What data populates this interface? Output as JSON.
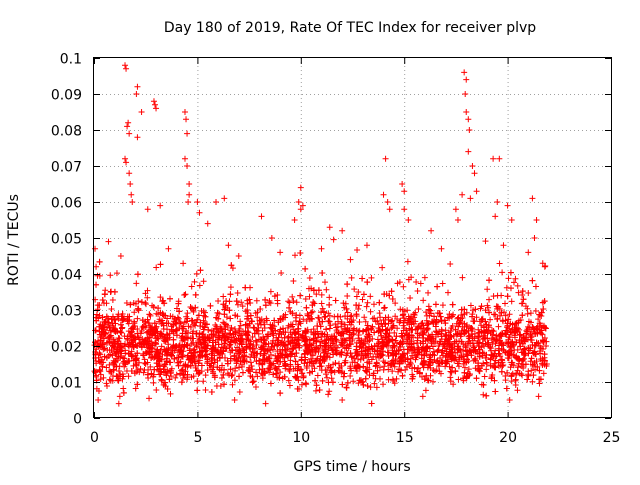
{
  "chart_data": {
    "type": "scatter",
    "title": "Day 180 of 2019, Rate Of TEC Index for receiver plvp",
    "xlabel": "GPS time / hours",
    "ylabel": "ROTI / TECUs",
    "xlim": [
      0,
      25
    ],
    "ylim": [
      0,
      0.1
    ],
    "xticks": [
      "0",
      "5",
      "10",
      "15",
      "20",
      "25"
    ],
    "yticks": [
      "0",
      "0.01",
      "0.02",
      "0.03",
      "0.04",
      "0.05",
      "0.06",
      "0.07",
      "0.08",
      "0.09",
      "0.1"
    ],
    "grid": true,
    "marker": "+",
    "series_color": "#ff0000",
    "data_extent_hours": [
      0,
      21.9
    ],
    "typical_band": [
      0.01,
      0.03
    ],
    "points": [
      [
        1.5,
        0.098
      ],
      [
        1.55,
        0.097
      ],
      [
        2.1,
        0.092
      ],
      [
        2.05,
        0.09
      ],
      [
        1.6,
        0.081
      ],
      [
        1.65,
        0.082
      ],
      [
        1.5,
        0.072
      ],
      [
        1.55,
        0.071
      ],
      [
        1.7,
        0.068
      ],
      [
        1.75,
        0.065
      ],
      [
        1.8,
        0.062
      ],
      [
        1.85,
        0.06
      ],
      [
        2.9,
        0.088
      ],
      [
        2.95,
        0.087
      ],
      [
        3.0,
        0.086
      ],
      [
        2.3,
        0.085
      ],
      [
        1.7,
        0.079
      ],
      [
        2.1,
        0.078
      ],
      [
        4.4,
        0.085
      ],
      [
        4.45,
        0.083
      ],
      [
        4.5,
        0.079
      ],
      [
        4.4,
        0.072
      ],
      [
        4.5,
        0.07
      ],
      [
        4.6,
        0.065
      ],
      [
        4.6,
        0.062
      ],
      [
        4.55,
        0.06
      ],
      [
        3.2,
        0.059
      ],
      [
        2.6,
        0.058
      ],
      [
        5.0,
        0.06
      ],
      [
        5.1,
        0.057
      ],
      [
        6.3,
        0.061
      ],
      [
        5.5,
        0.054
      ],
      [
        5.9,
        0.06
      ],
      [
        8.1,
        0.056
      ],
      [
        8.6,
        0.05
      ],
      [
        9.7,
        0.055
      ],
      [
        10.0,
        0.064
      ],
      [
        9.9,
        0.06
      ],
      [
        10.0,
        0.058
      ],
      [
        10.1,
        0.059
      ],
      [
        11.4,
        0.053
      ],
      [
        12.0,
        0.052
      ],
      [
        14.1,
        0.072
      ],
      [
        14.2,
        0.06
      ],
      [
        14.0,
        0.062
      ],
      [
        14.3,
        0.058
      ],
      [
        14.9,
        0.065
      ],
      [
        15.0,
        0.063
      ],
      [
        15.0,
        0.058
      ],
      [
        15.2,
        0.055
      ],
      [
        16.3,
        0.052
      ],
      [
        17.5,
        0.058
      ],
      [
        17.6,
        0.055
      ],
      [
        17.8,
        0.062
      ],
      [
        17.9,
        0.096
      ],
      [
        18.0,
        0.094
      ],
      [
        17.95,
        0.09
      ],
      [
        18.0,
        0.085
      ],
      [
        18.1,
        0.083
      ],
      [
        18.15,
        0.08
      ],
      [
        18.1,
        0.074
      ],
      [
        18.3,
        0.07
      ],
      [
        18.4,
        0.068
      ],
      [
        18.5,
        0.063
      ],
      [
        18.2,
        0.061
      ],
      [
        19.3,
        0.072
      ],
      [
        19.6,
        0.072
      ],
      [
        19.5,
        0.06
      ],
      [
        19.4,
        0.056
      ],
      [
        20.0,
        0.059
      ],
      [
        20.2,
        0.055
      ],
      [
        21.2,
        0.061
      ],
      [
        21.4,
        0.055
      ],
      [
        21.3,
        0.05
      ],
      [
        0.05,
        0.047
      ],
      [
        0.1,
        0.042
      ],
      [
        0.7,
        0.049
      ],
      [
        1.3,
        0.045
      ],
      [
        3.6,
        0.047
      ],
      [
        6.5,
        0.048
      ],
      [
        7.0,
        0.045
      ],
      [
        9.0,
        0.046
      ],
      [
        11.0,
        0.047
      ],
      [
        12.4,
        0.044
      ],
      [
        13.2,
        0.048
      ],
      [
        16.8,
        0.047
      ],
      [
        19.8,
        0.048
      ],
      [
        21.0,
        0.046
      ],
      [
        21.7,
        0.043
      ],
      [
        21.8,
        0.042
      ],
      [
        0.2,
        0.005
      ],
      [
        1.2,
        0.004
      ],
      [
        1.25,
        0.006
      ],
      [
        6.8,
        0.005
      ],
      [
        8.3,
        0.004
      ],
      [
        12.0,
        0.005
      ],
      [
        15.9,
        0.006
      ],
      [
        20.1,
        0.005
      ],
      [
        21.5,
        0.006
      ],
      [
        0.3,
        0.013
      ],
      [
        2.5,
        0.015
      ],
      [
        4.0,
        0.012
      ],
      [
        6.0,
        0.018
      ],
      [
        7.5,
        0.014
      ],
      [
        9.5,
        0.016
      ],
      [
        11.5,
        0.013
      ],
      [
        13.5,
        0.017
      ],
      [
        15.5,
        0.014
      ],
      [
        17.0,
        0.016
      ],
      [
        19.0,
        0.015
      ],
      [
        21.0,
        0.013
      ],
      [
        21.9,
        0.015
      ],
      [
        3.0,
        0.025
      ],
      [
        8.0,
        0.027
      ],
      [
        13.0,
        0.024
      ],
      [
        18.5,
        0.028
      ],
      [
        0.8,
        0.035
      ],
      [
        5.3,
        0.038
      ],
      [
        10.5,
        0.036
      ],
      [
        16.0,
        0.039
      ]
    ]
  }
}
